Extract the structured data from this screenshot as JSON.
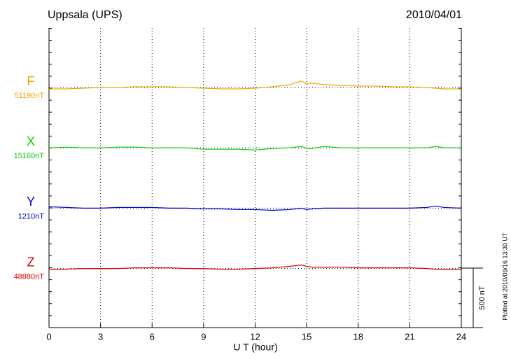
{
  "chart_data": {
    "type": "line",
    "title": "Uppsala (UPS)",
    "date": "2010/04/01",
    "xlabel": "U T (hour)",
    "note": "Plotted at 2010/09/16 13:30 UT",
    "xlim": [
      0,
      24
    ],
    "xticks": [
      0,
      3,
      6,
      9,
      12,
      15,
      18,
      21,
      24
    ],
    "grid": true,
    "scale_bar": {
      "value": 500,
      "label": "500 nT"
    },
    "x": [
      0,
      1,
      2,
      3,
      4,
      5,
      6,
      7,
      8,
      9,
      10,
      11,
      12,
      13,
      14,
      14.7,
      15,
      15.3,
      16,
      17,
      18,
      19,
      20,
      21,
      22,
      22.5,
      23,
      24
    ],
    "series": [
      {
        "name": "F",
        "color": "#f0a800",
        "baseline": {
          "value": 51190,
          "label": "51190nT"
        },
        "values": [
          51178,
          51178,
          51184,
          51190,
          51190,
          51196,
          51196,
          51196,
          51190,
          51184,
          51178,
          51178,
          51184,
          51196,
          51214,
          51244,
          51220,
          51226,
          51214,
          51208,
          51202,
          51202,
          51196,
          51196,
          51190,
          51184,
          51178,
          51178
        ]
      },
      {
        "name": "X",
        "color": "#00d000",
        "baseline": {
          "value": 15160,
          "label": "15160nT"
        },
        "values": [
          15160,
          15166,
          15160,
          15160,
          15166,
          15166,
          15160,
          15160,
          15160,
          15148,
          15148,
          15148,
          15142,
          15154,
          15160,
          15172,
          15154,
          15154,
          15172,
          15160,
          15160,
          15160,
          15160,
          15160,
          15160,
          15172,
          15160,
          15160
        ]
      },
      {
        "name": "Y",
        "color": "#0000d0",
        "baseline": {
          "value": 1210,
          "label": "1210nT"
        },
        "values": [
          1222,
          1216,
          1210,
          1210,
          1216,
          1216,
          1216,
          1210,
          1210,
          1204,
          1204,
          1198,
          1198,
          1192,
          1198,
          1210,
          1198,
          1204,
          1210,
          1210,
          1210,
          1210,
          1210,
          1210,
          1216,
          1228,
          1216,
          1210
        ]
      },
      {
        "name": "Z",
        "color": "#e00000",
        "baseline": {
          "value": 48880,
          "label": "48880nT"
        },
        "values": [
          48874,
          48874,
          48880,
          48880,
          48880,
          48886,
          48886,
          48886,
          48880,
          48880,
          48874,
          48874,
          48880,
          48886,
          48898,
          48910,
          48898,
          48892,
          48892,
          48892,
          48886,
          48886,
          48886,
          48886,
          48880,
          48874,
          48874,
          48874
        ]
      }
    ]
  }
}
